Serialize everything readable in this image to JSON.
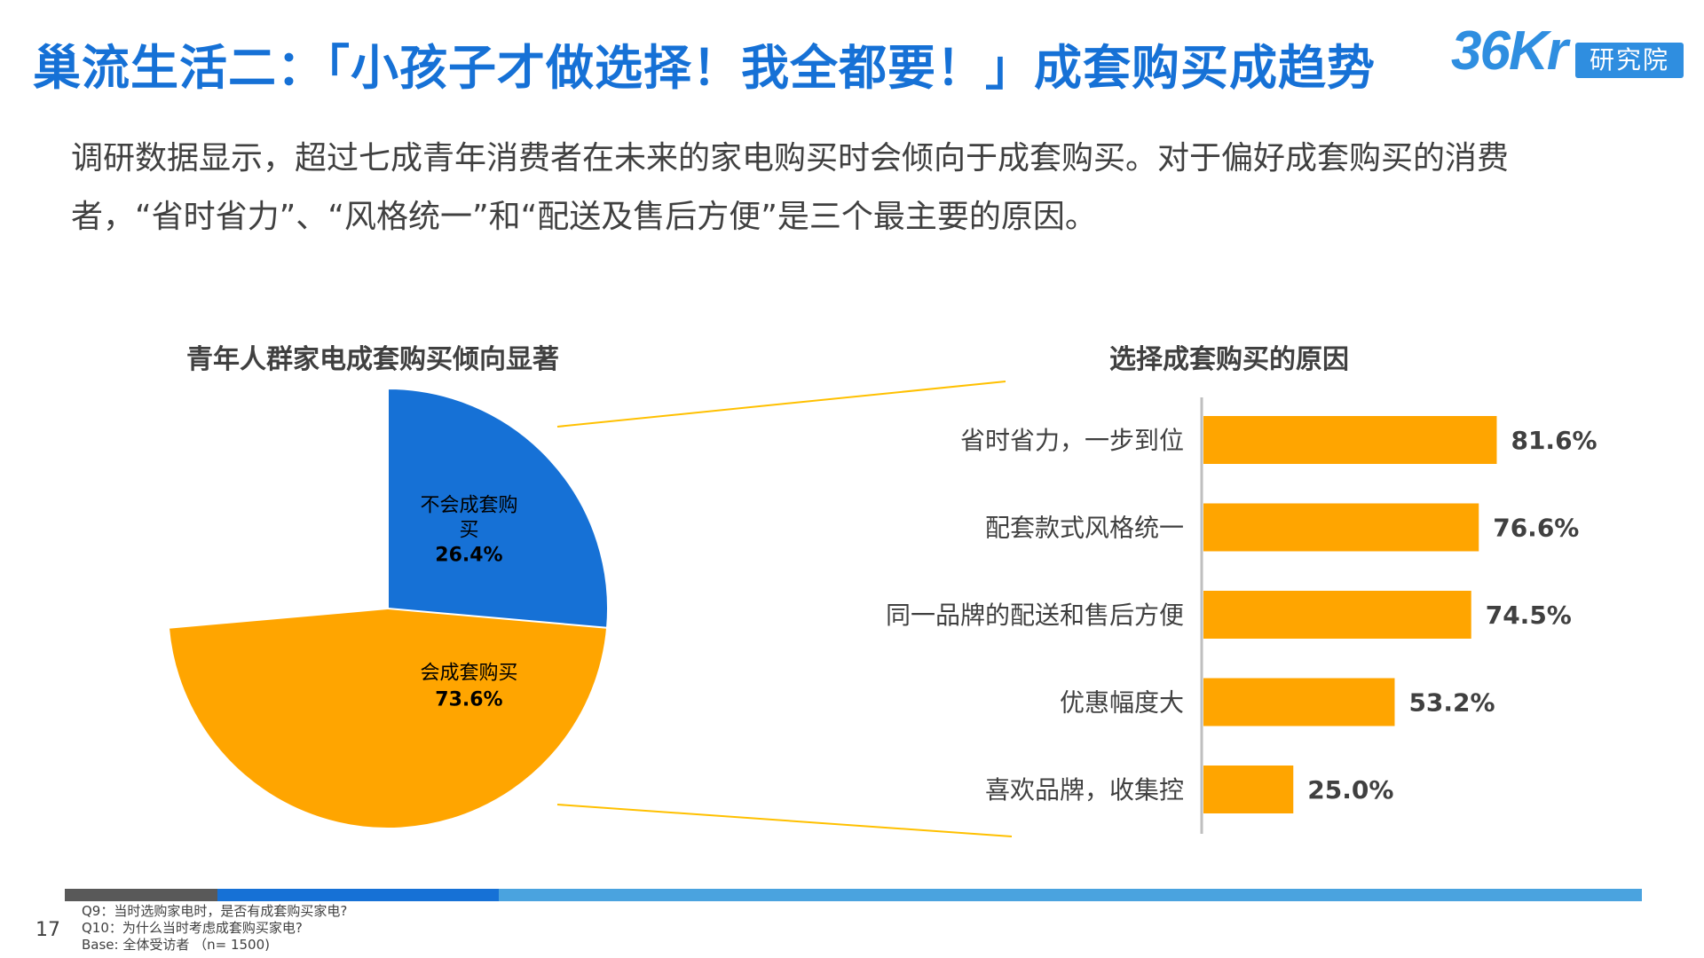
{
  "header": {
    "title": "巢流生活二：「小孩子才做选择！我全都要！」成套购买成趋势",
    "logo_text": "36Kr",
    "logo_sub": "研究院"
  },
  "intro": "调研数据显示，超过七成青年消费者在未来的家电购买时会倾向于成套购买。对于偏好成套购买的消费者，“省时省力”、“风格统一”和“配送及售后方便”是三个最主要的原因。",
  "chart_data": [
    {
      "type": "pie",
      "title": "青年人群家电成套购买倾向显著",
      "slices": [
        {
          "label": "会成套购买",
          "value": 73.6,
          "value_label": "73.6%",
          "color": "#FFA500"
        },
        {
          "label": "不会成套购买",
          "value": 26.4,
          "value_label": "26.4%",
          "color": "#1671D6"
        }
      ]
    },
    {
      "type": "bar",
      "orientation": "horizontal",
      "title": "选择成套购买的原因",
      "categories": [
        "省时省力，一步到位",
        "配套款式风格统一",
        "同一品牌的配送和售后方便",
        "优惠幅度大",
        "喜欢品牌，收集控"
      ],
      "values": [
        81.6,
        76.6,
        74.5,
        53.2,
        25.0
      ],
      "value_labels": [
        "81.6%",
        "76.6%",
        "74.5%",
        "53.2%",
        "25.0%"
      ],
      "color": "#FFA500",
      "xlim": [
        0,
        100
      ]
    }
  ],
  "footer": {
    "page_number": "17",
    "notes": [
      "Q9：当时选购家电时，是否有成套购买家电?",
      "Q10：为什么当时考虑成套购买家电?",
      "Base: 全体受访者 （n= 1500)"
    ],
    "bar_colors": [
      "#595959",
      "#1671D6",
      "#4AA3DF"
    ]
  }
}
